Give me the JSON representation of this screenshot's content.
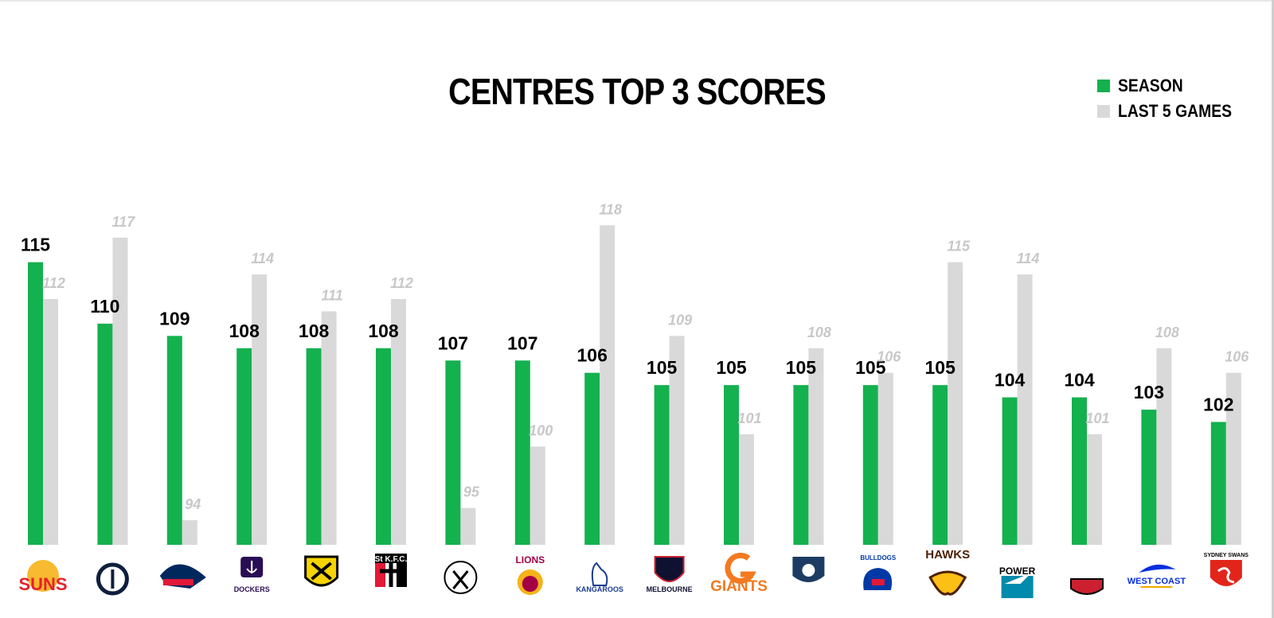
{
  "chart_data": {
    "type": "bar",
    "title": "CENTRES TOP 3 SCORES",
    "series": [
      {
        "name": "SEASON",
        "color": "#14b14f",
        "values": [
          115,
          110,
          109,
          108,
          108,
          108,
          107,
          107,
          106,
          105,
          105,
          105,
          105,
          105,
          104,
          104,
          103,
          102
        ]
      },
      {
        "name": "LAST 5 GAMES",
        "color": "#d9d9d9",
        "values": [
          112,
          117,
          94,
          114,
          111,
          112,
          95,
          100,
          118,
          109,
          101,
          108,
          106,
          115,
          114,
          101,
          108,
          106
        ]
      }
    ],
    "categories": [
      "SUNS",
      "CARLTON",
      "ADELAIDE",
      "DOCKERS",
      "RICHMOND",
      "ST KILDA",
      "COLLINGWOOD",
      "LIONS",
      "KANGAROOS",
      "MELBOURNE",
      "GIANTS",
      "CATS",
      "WESTERN BULLDOGS",
      "HAWKS",
      "POWER",
      "ESSENDON",
      "WEST COAST",
      "SYDNEY SWANS"
    ],
    "team_logos": [
      {
        "text": "SUNS",
        "icon": "suns-logo",
        "primary": "#e8202a",
        "secondary": "#f6b21a"
      },
      {
        "text": "",
        "icon": "carlton-logo",
        "primary": "#0e1e3d",
        "secondary": "#ffffff"
      },
      {
        "text": "",
        "icon": "adelaide-logo",
        "primary": "#00285d",
        "secondary": "#e21937"
      },
      {
        "text": "DOCKERS",
        "icon": "dockers-logo",
        "primary": "#2a0d54",
        "secondary": "#ffffff"
      },
      {
        "text": "",
        "icon": "richmond-logo",
        "primary": "#000000",
        "secondary": "#f6d300"
      },
      {
        "text": "St K.F.C.",
        "icon": "stkilda-logo",
        "primary": "#e21937",
        "secondary": "#000000"
      },
      {
        "text": "",
        "icon": "collingwood-logo",
        "primary": "#000000",
        "secondary": "#ffffff"
      },
      {
        "text": "LIONS",
        "icon": "lions-logo",
        "primary": "#a30046",
        "secondary": "#f6b21a"
      },
      {
        "text": "KANGAROOS",
        "icon": "kangaroos-logo",
        "primary": "#1a3b8f",
        "secondary": "#ffffff"
      },
      {
        "text": "MELBOURNE",
        "icon": "melbourne-logo",
        "primary": "#0f1131",
        "secondary": "#cc2031"
      },
      {
        "text": "GIANTS",
        "icon": "giants-logo",
        "primary": "#f47920",
        "secondary": "#ffffff"
      },
      {
        "text": "CATS",
        "icon": "cats-logo",
        "primary": "#1c3c63",
        "secondary": "#ffffff"
      },
      {
        "text": "BULLDOGS",
        "icon": "bulldogs-logo",
        "primary": "#0039a6",
        "secondary": "#e21937"
      },
      {
        "text": "HAWKS",
        "icon": "hawks-logo",
        "primary": "#4d2004",
        "secondary": "#fbbf15"
      },
      {
        "text": "POWER",
        "icon": "power-logo",
        "primary": "#000000",
        "secondary": "#008aab"
      },
      {
        "text": "ESSENDON",
        "icon": "essendon-logo",
        "primary": "#cc2031",
        "secondary": "#000000"
      },
      {
        "text": "WEST COAST",
        "icon": "westcoast-logo",
        "primary": "#062ee2",
        "secondary": "#f2a900"
      },
      {
        "text": "SYDNEY SWANS",
        "icon": "swans-logo",
        "primary": "#e1251b",
        "secondary": "#ffffff"
      }
    ],
    "ylim": [
      92,
      119
    ],
    "legend": "top-right",
    "grid": false,
    "xlabel": "",
    "ylabel": ""
  }
}
